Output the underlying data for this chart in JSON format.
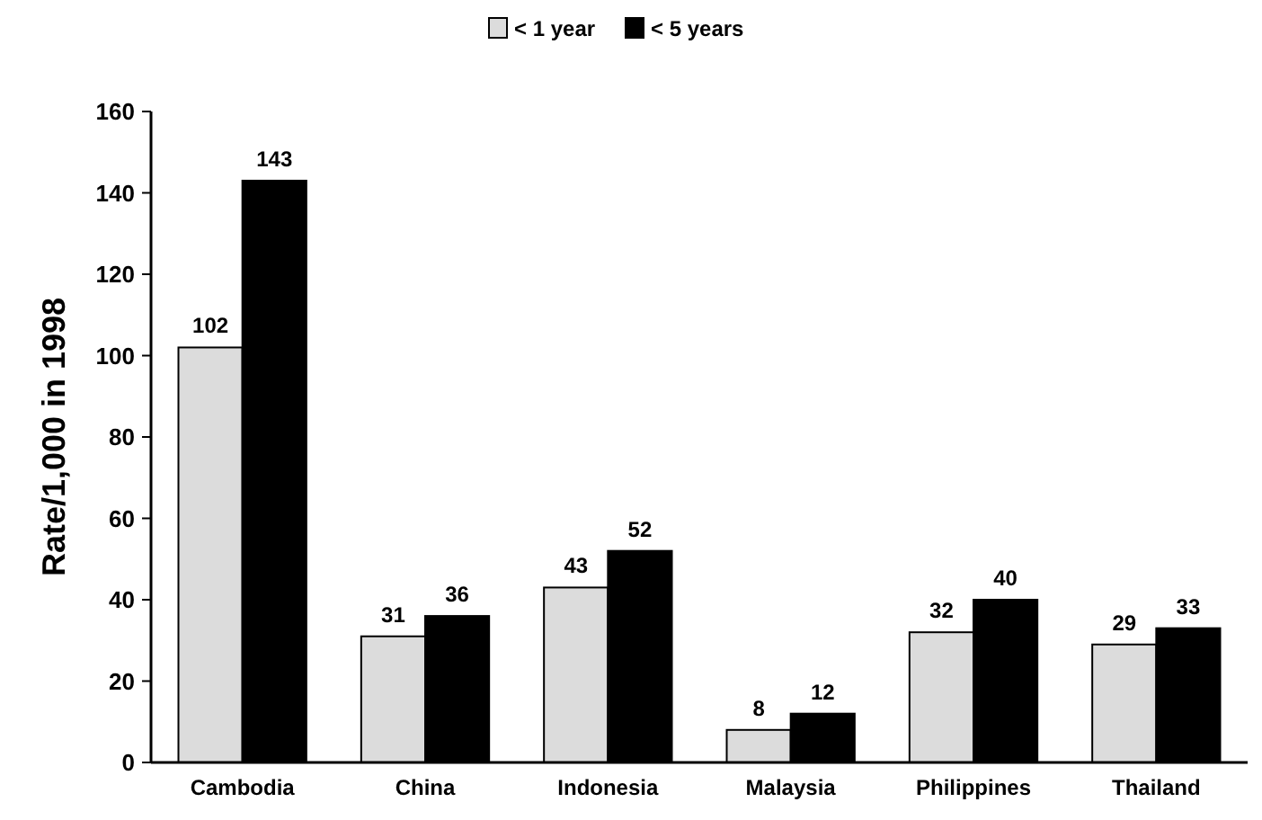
{
  "chart_data": {
    "type": "bar",
    "ylabel": "Rate/1,000 in 1998",
    "categories": [
      "Cambodia",
      "China",
      "Indonesia",
      "Malaysia",
      "Philippines",
      "Thailand"
    ],
    "series": [
      {
        "name": "< 1 year",
        "color": "#dcdcdc",
        "values": [
          102,
          31,
          43,
          8,
          32,
          29
        ]
      },
      {
        "name": "< 5 years",
        "color": "#000000",
        "values": [
          143,
          36,
          52,
          12,
          40,
          33
        ]
      }
    ],
    "ylim": [
      0,
      160
    ],
    "yticks": [
      0,
      20,
      40,
      60,
      80,
      100,
      120,
      140,
      160
    ],
    "data_labels": true,
    "legend": "top",
    "grid": false
  }
}
